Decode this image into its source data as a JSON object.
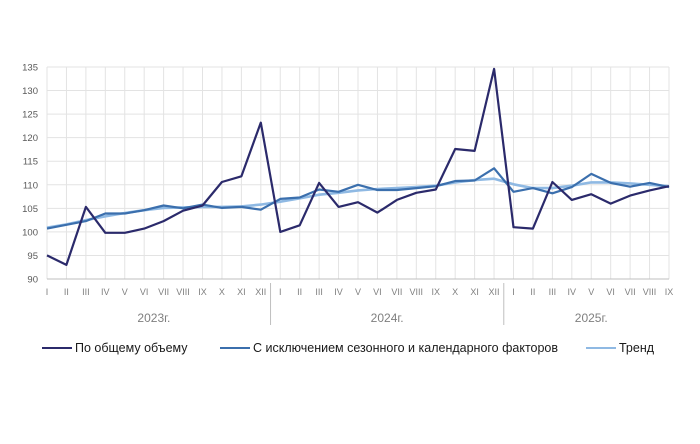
{
  "chart_data": {
    "type": "line",
    "title": "",
    "xlabel": "",
    "ylabel": "",
    "ylim": [
      90,
      135
    ],
    "yticks": [
      90,
      95,
      100,
      105,
      110,
      115,
      120,
      125,
      130,
      135
    ],
    "grid": true,
    "legend_position": "bottom",
    "year_groups": [
      {
        "label": "2023г.",
        "months": 12
      },
      {
        "label": "2024г.",
        "months": 12
      },
      {
        "label": "2025г.",
        "months": 9
      }
    ],
    "categories": [
      "I",
      "II",
      "III",
      "IV",
      "V",
      "VI",
      "VII",
      "VIII",
      "IX",
      "X",
      "XI",
      "XII",
      "I",
      "II",
      "III",
      "IV",
      "V",
      "VI",
      "VII",
      "VIII",
      "IX",
      "X",
      "XI",
      "XII",
      "I",
      "II",
      "III",
      "IV",
      "V",
      "VI",
      "VII",
      "VIII",
      "IX"
    ],
    "series": [
      {
        "name": "По общему объему",
        "color": "#2b2a6b",
        "values": [
          95.0,
          93.0,
          105.3,
          99.8,
          99.8,
          100.7,
          102.3,
          104.5,
          105.6,
          110.6,
          111.8,
          123.2,
          100.0,
          101.4,
          110.4,
          105.3,
          106.3,
          104.1,
          106.8,
          108.3,
          109.0,
          117.6,
          117.2,
          134.6,
          101.0,
          100.7,
          110.6,
          106.8,
          108.0,
          106.0,
          107.7,
          108.8,
          109.7
        ]
      },
      {
        "name": "С исключением сезонного и календарного факторов",
        "color": "#3b6fad",
        "values": [
          100.7,
          101.5,
          102.3,
          103.9,
          103.9,
          104.6,
          105.6,
          105.0,
          105.8,
          105.1,
          105.3,
          104.7,
          107.0,
          107.3,
          109.0,
          108.5,
          110.0,
          108.9,
          108.9,
          109.3,
          109.7,
          110.8,
          110.9,
          113.5,
          108.5,
          109.3,
          108.2,
          109.5,
          112.3,
          110.4,
          109.6,
          110.4,
          109.5
        ]
      },
      {
        "name": "Тренд",
        "color": "#8fb9e3",
        "values": [
          100.9,
          101.6,
          102.5,
          103.3,
          104.0,
          104.6,
          105.1,
          105.2,
          105.3,
          105.3,
          105.4,
          105.8,
          106.4,
          107.1,
          107.9,
          108.3,
          108.8,
          109.1,
          109.3,
          109.5,
          109.8,
          110.5,
          111.0,
          111.3,
          110.1,
          109.3,
          109.3,
          109.8,
          110.5,
          110.5,
          110.3,
          110.0,
          109.7
        ]
      }
    ]
  },
  "legend": {
    "items": [
      {
        "label": "По общему объему",
        "color": "#2b2a6b"
      },
      {
        "label": "С исключением сезонного и календарного факторов",
        "color": "#3b6fad"
      },
      {
        "label": "Тренд",
        "color": "#8fb9e3"
      }
    ]
  }
}
